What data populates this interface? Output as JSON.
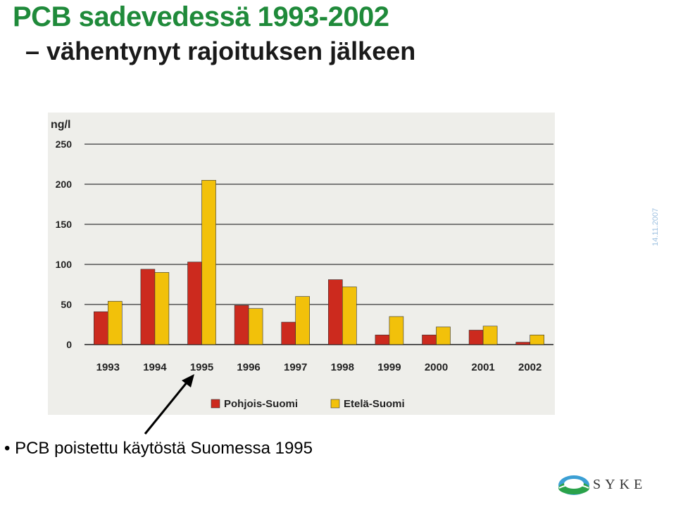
{
  "slide": {
    "title": "PCB sadevedessä 1993-2002",
    "subtitle": "– vähentynyt rajoituksen jälkeen",
    "date_stamp": "14.11.2007",
    "bullet_marker": "•",
    "bullet_text": "PCB poistettu käytöstä Suomessa 1995",
    "logo_text": "SYKE"
  },
  "colors": {
    "title": "#1f8a3a",
    "series_north": "#cc2a1e",
    "series_south": "#f2c10a",
    "plot_bg": "#eeeeea",
    "grid": "#555555"
  },
  "chart_data": {
    "type": "bar",
    "title": "",
    "xlabel": "",
    "ylabel": "ng/l",
    "categories": [
      "1993",
      "1994",
      "1995",
      "1996",
      "1997",
      "1998",
      "1999",
      "2000",
      "2001",
      "2002"
    ],
    "series": [
      {
        "name": "Pohjois-Suomi",
        "values": [
          41,
          94,
          103,
          49,
          28,
          81,
          12,
          12,
          18,
          3
        ]
      },
      {
        "name": "Etelä-Suomi",
        "values": [
          54,
          90,
          205,
          45,
          60,
          72,
          35,
          22,
          23,
          12
        ]
      }
    ],
    "ylim": [
      0,
      250
    ],
    "yticks": [
      "0",
      "50",
      "100",
      "150",
      "200",
      "250"
    ],
    "grid": true,
    "legend_position": "bottom"
  }
}
